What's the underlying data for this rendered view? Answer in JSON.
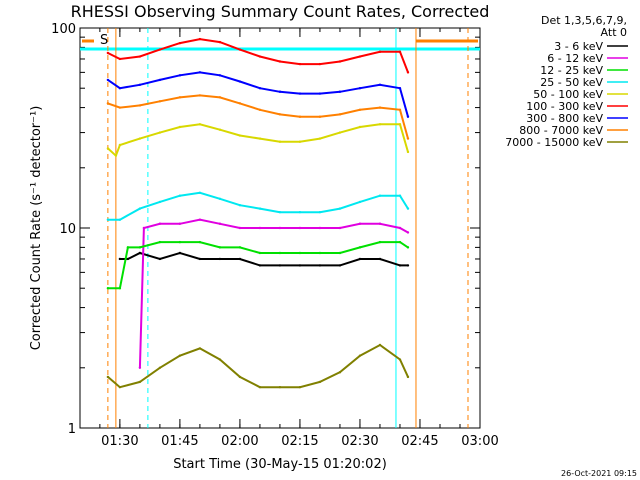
{
  "chart_data": {
    "type": "line",
    "title": "RHESSI Observing Summary Count Rates, Corrected",
    "xlabel": "Start Time (30-May-15 01:20:02)",
    "ylabel": "Corrected Count Rate (s⁻¹ detector⁻¹)",
    "y_scale": "log",
    "ylim": [
      1,
      100
    ],
    "y_ticks": [
      "1",
      "10",
      "100"
    ],
    "x_range": [
      "01:20:02",
      "03:00"
    ],
    "x_ticks": [
      "01:30",
      "01:45",
      "02:00",
      "02:15",
      "02:30",
      "02:45",
      "03:00"
    ],
    "legend_header": [
      "Det 1,3,5,6,7,9,",
      "Att 0"
    ],
    "legend_position": "right",
    "series": [
      {
        "name": "3 - 6 keV",
        "color": "#000000",
        "x": [
          "01:30",
          "01:32",
          "01:35",
          "01:40",
          "01:45",
          "01:50",
          "01:55",
          "02:00",
          "02:05",
          "02:10",
          "02:15",
          "02:20",
          "02:25",
          "02:30",
          "02:35",
          "02:40",
          "02:42"
        ],
        "y": [
          7,
          7,
          7.5,
          7,
          7.5,
          7,
          7,
          7,
          6.5,
          6.5,
          6.5,
          6.5,
          6.5,
          7,
          7,
          6.5,
          6.5
        ]
      },
      {
        "name": "6 - 12 keV",
        "color": "#e000e0",
        "x": [
          "01:35",
          "01:36",
          "01:40",
          "01:45",
          "01:50",
          "01:55",
          "02:00",
          "02:05",
          "02:10",
          "02:15",
          "02:20",
          "02:25",
          "02:30",
          "02:35",
          "02:40",
          "02:42"
        ],
        "y": [
          2,
          10,
          10.5,
          10.5,
          11,
          10.5,
          10,
          10,
          10,
          10,
          10,
          10,
          10.5,
          10.5,
          10,
          9.5
        ]
      },
      {
        "name": "12 - 25 keV",
        "color": "#00e000",
        "x": [
          "01:27",
          "01:30",
          "01:32",
          "01:35",
          "01:40",
          "01:45",
          "01:50",
          "01:55",
          "02:00",
          "02:05",
          "02:10",
          "02:15",
          "02:20",
          "02:25",
          "02:30",
          "02:35",
          "02:40",
          "02:42"
        ],
        "y": [
          5,
          5,
          8,
          8,
          8.5,
          8.5,
          8.5,
          8,
          8,
          7.5,
          7.5,
          7.5,
          7.5,
          7.5,
          8,
          8.5,
          8.5,
          8
        ]
      },
      {
        "name": "25 - 50 keV",
        "color": "#00e8f0",
        "x": [
          "01:27",
          "01:30",
          "01:35",
          "01:40",
          "01:45",
          "01:50",
          "01:55",
          "02:00",
          "02:05",
          "02:10",
          "02:15",
          "02:20",
          "02:25",
          "02:30",
          "02:35",
          "02:40",
          "02:42"
        ],
        "y": [
          11,
          11,
          12.5,
          13.5,
          14.5,
          15,
          14,
          13,
          12.5,
          12,
          12,
          12,
          12.5,
          13.5,
          14.5,
          14.5,
          12.5
        ]
      },
      {
        "name": "50 - 100 keV",
        "color": "#d8d800",
        "x": [
          "01:27",
          "01:29",
          "01:30",
          "01:35",
          "01:40",
          "01:45",
          "01:50",
          "01:55",
          "02:00",
          "02:05",
          "02:10",
          "02:15",
          "02:20",
          "02:25",
          "02:30",
          "02:35",
          "02:40",
          "02:42"
        ],
        "y": [
          25,
          23,
          26,
          28,
          30,
          32,
          33,
          31,
          29,
          28,
          27,
          27,
          28,
          30,
          32,
          33,
          33,
          24
        ]
      },
      {
        "name": "100 - 300 keV",
        "color": "#ff0000",
        "x": [
          "01:27",
          "01:30",
          "01:35",
          "01:40",
          "01:45",
          "01:50",
          "01:55",
          "02:00",
          "02:05",
          "02:10",
          "02:15",
          "02:20",
          "02:25",
          "02:30",
          "02:35",
          "02:40",
          "02:42"
        ],
        "y": [
          75,
          70,
          72,
          78,
          84,
          88,
          85,
          78,
          72,
          68,
          66,
          66,
          68,
          72,
          76,
          76,
          60
        ]
      },
      {
        "name": "300 - 800 keV",
        "color": "#0000ff",
        "x": [
          "01:27",
          "01:30",
          "01:35",
          "01:40",
          "01:45",
          "01:50",
          "01:55",
          "02:00",
          "02:05",
          "02:10",
          "02:15",
          "02:20",
          "02:25",
          "02:30",
          "02:35",
          "02:40",
          "02:42"
        ],
        "y": [
          55,
          50,
          52,
          55,
          58,
          60,
          58,
          54,
          50,
          48,
          47,
          47,
          48,
          50,
          52,
          50,
          36
        ]
      },
      {
        "name": "800 - 7000 keV",
        "color": "#ff8000",
        "x": [
          "01:27",
          "01:30",
          "01:35",
          "01:40",
          "01:45",
          "01:50",
          "01:55",
          "02:00",
          "02:05",
          "02:10",
          "02:15",
          "02:20",
          "02:25",
          "02:30",
          "02:35",
          "02:40",
          "02:42"
        ],
        "y": [
          42,
          40,
          41,
          43,
          45,
          46,
          45,
          42,
          39,
          37,
          36,
          36,
          37,
          39,
          40,
          39,
          28
        ]
      },
      {
        "name": "7000 - 15000 keV",
        "color": "#808000",
        "x": [
          "01:27",
          "01:30",
          "01:35",
          "01:40",
          "01:45",
          "01:50",
          "01:55",
          "02:00",
          "02:05",
          "02:10",
          "02:15",
          "02:20",
          "02:25",
          "02:30",
          "02:35",
          "02:40",
          "02:42"
        ],
        "y": [
          1.8,
          1.6,
          1.7,
          2,
          2.3,
          2.5,
          2.2,
          1.8,
          1.6,
          1.6,
          1.6,
          1.7,
          1.9,
          2.3,
          2.6,
          2.2,
          1.8
        ]
      }
    ],
    "flag_label": "S",
    "attenuator_bar_color": "#ff8000",
    "saa_bar_color": "#00ffff"
  },
  "footer_stamp": "26-Oct-2021 09:15"
}
